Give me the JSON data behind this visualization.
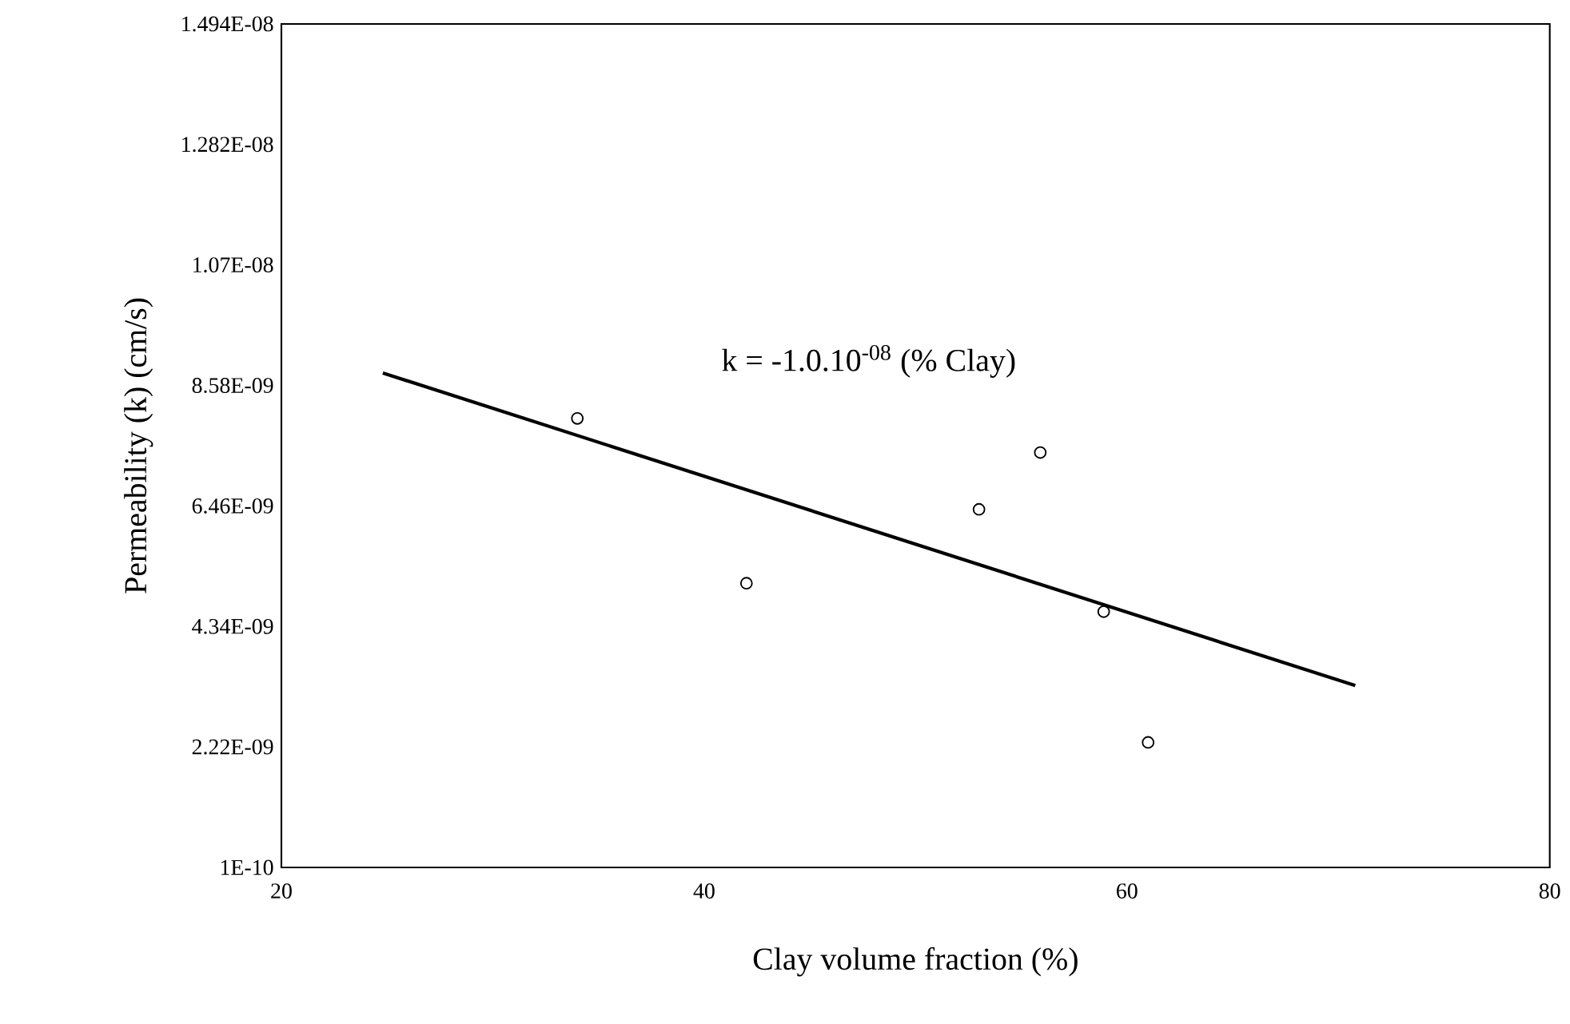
{
  "chart_data": {
    "type": "scatter",
    "xlabel": "Clay volume fraction (%)",
    "ylabel": "Permeability  (k) (cm/s)",
    "annotations": [
      "k = -1.0.10$^{-08}$ (% Clay)"
    ],
    "xlim": [
      20,
      80
    ],
    "xticks": [
      20,
      40,
      60,
      80
    ],
    "ylim": [
      1e-10,
      1.494e-08
    ],
    "yticks": [
      {
        "value": 1e-10,
        "label": "1E-10"
      },
      {
        "value": 2.22e-09,
        "label": "2.22E-09"
      },
      {
        "value": 4.34e-09,
        "label": "4.34E-09"
      },
      {
        "value": 6.46e-09,
        "label": "6.46E-09"
      },
      {
        "value": 8.58e-09,
        "label": "8.58E-09"
      },
      {
        "value": 1.07e-08,
        "label": "1.07E-08"
      },
      {
        "value": 1.282e-08,
        "label": "1.282E-08"
      },
      {
        "value": 1.494e-08,
        "label": "1.494E-08"
      }
    ],
    "series": [
      {
        "marker": "circle",
        "color": "#000000",
        "x": [
          34.0,
          42.0,
          53.0,
          55.9,
          58.9,
          61.0
        ],
        "values": [
          8e-09,
          5.1e-09,
          6.4e-09,
          7.4e-09,
          4.6e-09,
          2.3e-09
        ]
      },
      {
        "type": "line",
        "marker": "none",
        "line_style": "solid",
        "color": "#000000",
        "x": [
          24.8,
          70.8
        ],
        "values": [
          8.8e-09,
          3.3e-09
        ]
      }
    ]
  }
}
